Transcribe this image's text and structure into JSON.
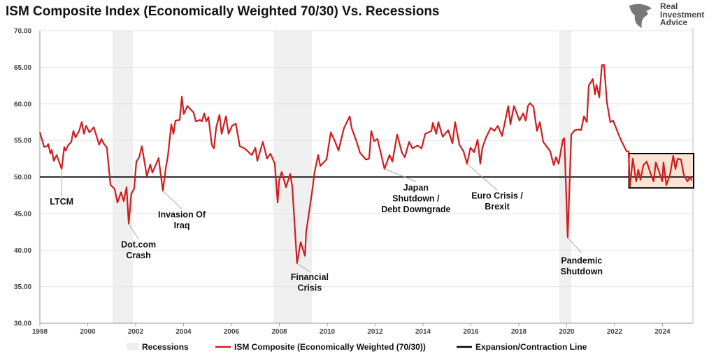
{
  "chart_data": {
    "type": "line",
    "title": "ISM Composite Index (Economically Weighted 70/30) Vs. Recessions",
    "xlabel": "",
    "ylabel": "",
    "xlim": [
      1998,
      2025.3
    ],
    "ylim": [
      30,
      70
    ],
    "grid": true,
    "legend_placement": "bottom",
    "x_ticks": [
      "1998",
      "2000",
      "2002",
      "2004",
      "2006",
      "2008",
      "2010",
      "2012",
      "2014",
      "2016",
      "2018",
      "2020",
      "2022",
      "2024"
    ],
    "y_ticks": [
      "30.00",
      "35.00",
      "40.00",
      "45.00",
      "50.00",
      "55.00",
      "60.00",
      "65.00",
      "70.00"
    ],
    "colors": {
      "series": "#d01c1f",
      "recession": "#efefef",
      "line": "#000000",
      "highlight_box": "#fbe3d3"
    },
    "recessions": [
      [
        2001.04,
        2001.88
      ],
      [
        2007.75,
        2009.36
      ],
      [
        2019.69,
        2020.19
      ]
    ],
    "reference_line": {
      "name": "Expansion/Contraction Line",
      "value": 50
    },
    "highlight_box": {
      "x": [
        2022.6,
        2025.3
      ],
      "y": [
        48.5,
        53.2
      ]
    },
    "series": [
      {
        "name": "ISM Composite (Economically Weighted (70/30))",
        "points": [
          [
            1998.0,
            56.1
          ],
          [
            1998.18,
            54.1
          ],
          [
            1998.29,
            54.2
          ],
          [
            1998.35,
            54.5
          ],
          [
            1998.44,
            53.2
          ],
          [
            1998.5,
            53.7
          ],
          [
            1998.58,
            52.2
          ],
          [
            1998.7,
            53.0
          ],
          [
            1998.91,
            51.1
          ],
          [
            1999.02,
            54.1
          ],
          [
            1999.08,
            53.6
          ],
          [
            1999.17,
            54.3
          ],
          [
            1999.31,
            54.8
          ],
          [
            1999.4,
            56.3
          ],
          [
            1999.49,
            55.4
          ],
          [
            1999.64,
            56.3
          ],
          [
            1999.75,
            57.5
          ],
          [
            1999.84,
            55.9
          ],
          [
            1999.93,
            57.0
          ],
          [
            2000.07,
            56.1
          ],
          [
            2000.25,
            56.8
          ],
          [
            2000.48,
            54.4
          ],
          [
            2000.57,
            55.2
          ],
          [
            2000.66,
            54.6
          ],
          [
            2000.8,
            54.0
          ],
          [
            2000.95,
            48.9
          ],
          [
            2001.12,
            48.4
          ],
          [
            2001.24,
            46.5
          ],
          [
            2001.39,
            47.9
          ],
          [
            2001.5,
            46.7
          ],
          [
            2001.62,
            48.6
          ],
          [
            2001.71,
            43.6
          ],
          [
            2001.82,
            47.7
          ],
          [
            2001.94,
            48.4
          ],
          [
            2002.03,
            52.1
          ],
          [
            2002.15,
            52.7
          ],
          [
            2002.26,
            54.2
          ],
          [
            2002.47,
            50.1
          ],
          [
            2002.61,
            51.7
          ],
          [
            2002.7,
            50.6
          ],
          [
            2002.82,
            51.5
          ],
          [
            2002.96,
            52.6
          ],
          [
            2003.02,
            51.0
          ],
          [
            2003.14,
            48.1
          ],
          [
            2003.26,
            51.3
          ],
          [
            2003.34,
            52.7
          ],
          [
            2003.49,
            57.2
          ],
          [
            2003.58,
            55.9
          ],
          [
            2003.66,
            57.7
          ],
          [
            2003.84,
            57.8
          ],
          [
            2003.93,
            61.0
          ],
          [
            2004.01,
            58.6
          ],
          [
            2004.16,
            59.7
          ],
          [
            2004.42,
            58.8
          ],
          [
            2004.51,
            57.6
          ],
          [
            2004.69,
            57.8
          ],
          [
            2004.77,
            57.6
          ],
          [
            2004.86,
            58.7
          ],
          [
            2004.95,
            57.6
          ],
          [
            2005.04,
            58.2
          ],
          [
            2005.18,
            54.4
          ],
          [
            2005.27,
            53.9
          ],
          [
            2005.36,
            56.7
          ],
          [
            2005.5,
            58.5
          ],
          [
            2005.59,
            55.9
          ],
          [
            2005.77,
            58.3
          ],
          [
            2005.88,
            55.9
          ],
          [
            2006.03,
            57.0
          ],
          [
            2006.18,
            57.3
          ],
          [
            2006.35,
            54.2
          ],
          [
            2006.55,
            53.9
          ],
          [
            2006.85,
            53.0
          ],
          [
            2007.0,
            54.0
          ],
          [
            2007.08,
            52.2
          ],
          [
            2007.31,
            54.8
          ],
          [
            2007.49,
            52.5
          ],
          [
            2007.63,
            53.2
          ],
          [
            2007.81,
            51.8
          ],
          [
            2007.93,
            46.5
          ],
          [
            2007.99,
            49.5
          ],
          [
            2008.1,
            50.7
          ],
          [
            2008.28,
            48.6
          ],
          [
            2008.45,
            50.4
          ],
          [
            2008.54,
            48.7
          ],
          [
            2008.74,
            38.2
          ],
          [
            2008.89,
            41.1
          ],
          [
            2009.07,
            39.2
          ],
          [
            2009.12,
            42.5
          ],
          [
            2009.36,
            47.8
          ],
          [
            2009.47,
            50.6
          ],
          [
            2009.62,
            53.0
          ],
          [
            2009.71,
            51.5
          ],
          [
            2009.97,
            52.4
          ],
          [
            2010.15,
            56.1
          ],
          [
            2010.32,
            54.9
          ],
          [
            2010.47,
            53.6
          ],
          [
            2010.7,
            56.7
          ],
          [
            2010.94,
            58.3
          ],
          [
            2011.02,
            56.7
          ],
          [
            2011.23,
            54.8
          ],
          [
            2011.37,
            53.3
          ],
          [
            2011.61,
            52.4
          ],
          [
            2011.75,
            52.5
          ],
          [
            2011.84,
            56.3
          ],
          [
            2011.96,
            54.9
          ],
          [
            2012.1,
            55.2
          ],
          [
            2012.39,
            51.1
          ],
          [
            2012.6,
            53.0
          ],
          [
            2012.72,
            52.1
          ],
          [
            2012.92,
            55.8
          ],
          [
            2013.12,
            53.3
          ],
          [
            2013.24,
            52.7
          ],
          [
            2013.42,
            54.8
          ],
          [
            2013.56,
            53.9
          ],
          [
            2013.77,
            54.3
          ],
          [
            2013.94,
            53.9
          ],
          [
            2014.09,
            55.9
          ],
          [
            2014.35,
            56.3
          ],
          [
            2014.41,
            57.4
          ],
          [
            2014.55,
            55.9
          ],
          [
            2014.64,
            57.5
          ],
          [
            2014.82,
            55.5
          ],
          [
            2015.05,
            56.4
          ],
          [
            2015.23,
            54.6
          ],
          [
            2015.34,
            57.5
          ],
          [
            2015.52,
            54.4
          ],
          [
            2015.69,
            53.5
          ],
          [
            2015.84,
            51.8
          ],
          [
            2015.98,
            54.0
          ],
          [
            2016.13,
            53.4
          ],
          [
            2016.28,
            55.1
          ],
          [
            2016.39,
            51.8
          ],
          [
            2016.48,
            54.0
          ],
          [
            2016.63,
            55.4
          ],
          [
            2016.83,
            56.7
          ],
          [
            2016.98,
            56.3
          ],
          [
            2017.12,
            57.0
          ],
          [
            2017.3,
            55.6
          ],
          [
            2017.56,
            59.7
          ],
          [
            2017.65,
            57.2
          ],
          [
            2017.8,
            59.7
          ],
          [
            2018.03,
            57.7
          ],
          [
            2018.18,
            58.7
          ],
          [
            2018.29,
            57.7
          ],
          [
            2018.38,
            59.7
          ],
          [
            2018.47,
            60.1
          ],
          [
            2018.61,
            59.6
          ],
          [
            2018.76,
            56.3
          ],
          [
            2018.88,
            57.5
          ],
          [
            2019.02,
            54.8
          ],
          [
            2019.31,
            53.5
          ],
          [
            2019.46,
            51.6
          ],
          [
            2019.55,
            52.7
          ],
          [
            2019.66,
            51.8
          ],
          [
            2019.84,
            55.1
          ],
          [
            2019.9,
            55.3
          ],
          [
            2020.04,
            41.7
          ],
          [
            2020.19,
            55.8
          ],
          [
            2020.34,
            56.4
          ],
          [
            2020.51,
            56.5
          ],
          [
            2020.6,
            56.4
          ],
          [
            2020.72,
            58.3
          ],
          [
            2020.84,
            57.5
          ],
          [
            2020.92,
            62.5
          ],
          [
            2021.09,
            63.4
          ],
          [
            2021.18,
            61.3
          ],
          [
            2021.24,
            62.6
          ],
          [
            2021.36,
            60.9
          ],
          [
            2021.47,
            65.3
          ],
          [
            2021.56,
            65.3
          ],
          [
            2021.68,
            60.2
          ],
          [
            2021.82,
            57.5
          ],
          [
            2021.94,
            57.7
          ],
          [
            2022.23,
            55.3
          ],
          [
            2022.5,
            53.5
          ],
          [
            2022.58,
            53.5
          ],
          [
            2022.64,
            48.7
          ],
          [
            2022.76,
            52.5
          ],
          [
            2022.9,
            49.4
          ],
          [
            2022.99,
            51.0
          ],
          [
            2023.08,
            49.6
          ],
          [
            2023.2,
            51.6
          ],
          [
            2023.34,
            52.1
          ],
          [
            2023.49,
            50.6
          ],
          [
            2023.63,
            49.4
          ],
          [
            2023.72,
            52.0
          ],
          [
            2023.87,
            50.6
          ],
          [
            2023.99,
            49.4
          ],
          [
            2024.04,
            52.0
          ],
          [
            2024.16,
            48.9
          ],
          [
            2024.31,
            50.3
          ],
          [
            2024.45,
            52.9
          ],
          [
            2024.54,
            51.1
          ],
          [
            2024.63,
            52.5
          ],
          [
            2024.77,
            52.4
          ],
          [
            2024.89,
            50.3
          ],
          [
            2025.04,
            49.4
          ],
          [
            2025.15,
            50.0
          ],
          [
            2025.22,
            49.5
          ]
        ]
      }
    ],
    "annotations": [
      {
        "lines": [
          "LTCM"
        ],
        "x": 1998.91,
        "y": 51.1
      },
      {
        "lines": [
          "Dot.com",
          "Crash"
        ],
        "x": 2001.71,
        "y": 43.6
      },
      {
        "lines": [
          "Invasion Of",
          "Iraq"
        ],
        "x": 2003.14,
        "y": 48.1
      },
      {
        "lines": [
          "Financial",
          "Crisis"
        ],
        "x": 2008.74,
        "y": 38.2
      },
      {
        "lines": [
          "Japan",
          "Shutdown /",
          "Debt Downgrade"
        ],
        "x": 2012.39,
        "y": 51.1
      },
      {
        "lines": [
          "Euro Crisis /",
          "Brexit"
        ],
        "x": 2015.84,
        "y": 51.8
      },
      {
        "lines": [
          "Pandemic",
          "Shutdown"
        ],
        "x": 2020.04,
        "y": 41.7
      }
    ],
    "legend": [
      "Recessions",
      "ISM Composite (Economically Weighted (70/30))",
      "Expansion/Contraction Line"
    ]
  },
  "logo": {
    "text": [
      "Real",
      "Investment",
      "Advice"
    ]
  }
}
